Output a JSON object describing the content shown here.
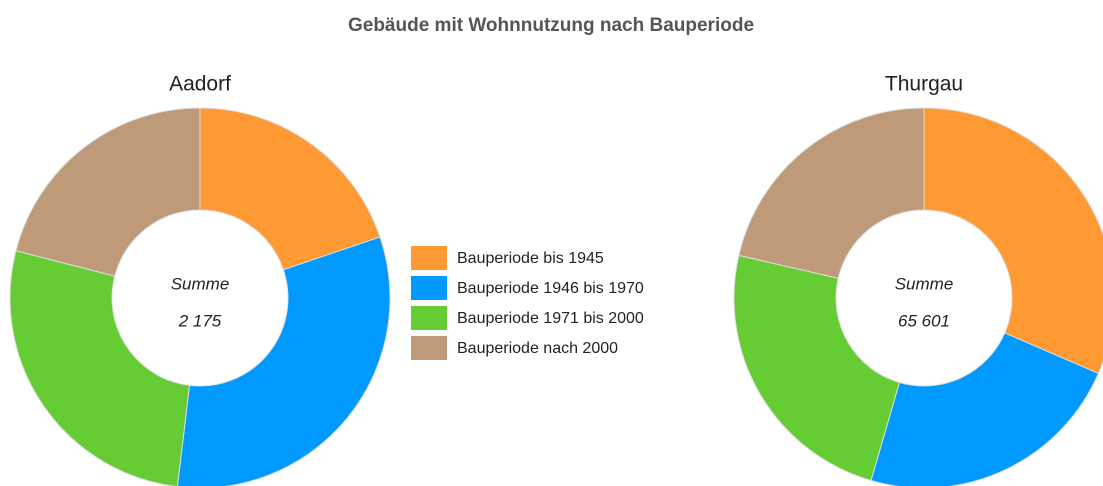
{
  "title": "Gebäude mit Wohnnutzung nach Bauperiode",
  "chart_data": [
    {
      "type": "pie",
      "title": "Aadorf",
      "categories": [
        "Bauperiode bis 1945",
        "Bauperiode 1946 bis 1970",
        "Bauperiode 1971 bis 2000",
        "Bauperiode nach 2000"
      ],
      "values": [
        19.8,
        32.1,
        27.1,
        21.0
      ],
      "colors": [
        "#ff9933",
        "#0099ff",
        "#66cc33",
        "#bf9a78"
      ],
      "donut": true,
      "total_label": "Summe",
      "total": {
        "value": 2175,
        "label": "2 175"
      }
    },
    {
      "type": "pie",
      "title": "Thurgau",
      "categories": [
        "Bauperiode bis 1945",
        "Bauperiode 1946 bis 1970",
        "Bauperiode 1971 bis 2000",
        "Bauperiode nach 2000"
      ],
      "values": [
        31.5,
        23.0,
        24.1,
        21.4
      ],
      "colors": [
        "#ff9933",
        "#0099ff",
        "#66cc33",
        "#bf9a78"
      ],
      "donut": true,
      "total_label": "Summe",
      "total": {
        "value": 65601,
        "label": "65 601"
      }
    }
  ]
}
